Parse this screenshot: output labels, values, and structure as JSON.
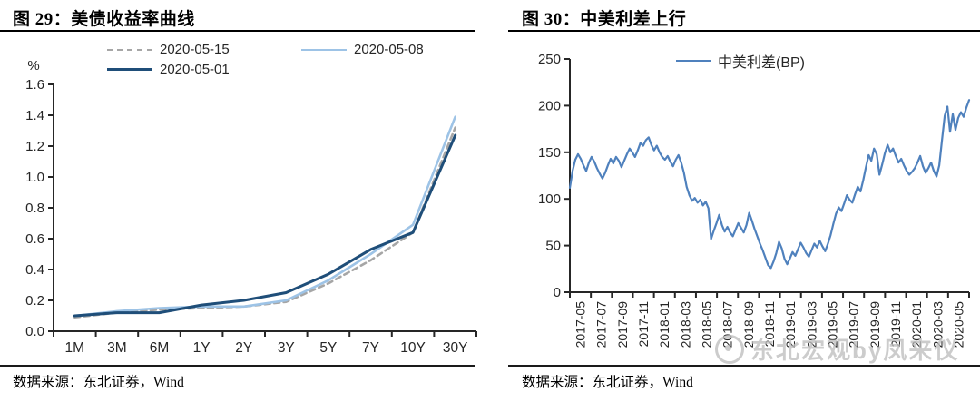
{
  "page": {
    "background": "#ffffff"
  },
  "panels": {
    "left": {
      "title": "图 29：美债收益率曲线",
      "source": "数据来源：东北证券，Wind"
    },
    "right": {
      "title": "图 30：中美利差上行",
      "source": "数据来源：东北证券，Wind",
      "watermark": "东北宏观by凤来仪"
    }
  },
  "chart_data": [
    {
      "type": "line",
      "title": "美债收益率曲线",
      "xlabel": "",
      "ylabel": "%",
      "ylim": [
        0,
        1.6
      ],
      "ytick_step": 0.2,
      "ytick_decimals": 1,
      "grid": false,
      "legend_position": "top",
      "categories": [
        "1M",
        "3M",
        "6M",
        "1Y",
        "2Y",
        "3Y",
        "5Y",
        "7Y",
        "10Y",
        "30Y"
      ],
      "series": [
        {
          "name": "2020-05-15",
          "color": "#a6a6a6",
          "style": "dashed",
          "width": 2.6,
          "values": [
            0.09,
            0.12,
            0.14,
            0.15,
            0.16,
            0.19,
            0.31,
            0.46,
            0.64,
            1.32
          ]
        },
        {
          "name": "2020-05-08",
          "color": "#9dc3e6",
          "style": "solid",
          "width": 2.6,
          "values": [
            0.1,
            0.13,
            0.15,
            0.16,
            0.16,
            0.2,
            0.33,
            0.5,
            0.69,
            1.39
          ]
        },
        {
          "name": "2020-05-01",
          "color": "#1f4e79",
          "style": "solid",
          "width": 3,
          "values": [
            0.1,
            0.12,
            0.12,
            0.17,
            0.2,
            0.25,
            0.37,
            0.53,
            0.64,
            1.27
          ]
        }
      ]
    },
    {
      "type": "line",
      "title": "中美利差上行",
      "xlabel": "",
      "ylabel": "",
      "ylim": [
        0,
        250
      ],
      "ytick_step": 50,
      "ytick_decimals": 0,
      "grid": false,
      "legend_position": "top",
      "x_labels": [
        "2017-05",
        "2017-07",
        "2017-09",
        "2017-11",
        "2018-01",
        "2018-03",
        "2018-05",
        "2018-07",
        "2018-09",
        "2018-11",
        "2019-01",
        "2019-03",
        "2019-05",
        "2019-07",
        "2019-09",
        "2019-11",
        "2020-01",
        "2020-03",
        "2020-05"
      ],
      "x_unit": "weekly points from 2017-05 to 2020-05",
      "series": [
        {
          "name": "中美利差(BP)",
          "color": "#4f81bd",
          "style": "solid",
          "width": 2.2,
          "values": [
            112,
            130,
            142,
            148,
            143,
            136,
            130,
            139,
            145,
            140,
            133,
            127,
            122,
            128,
            136,
            143,
            138,
            145,
            141,
            134,
            141,
            148,
            154,
            150,
            145,
            152,
            160,
            157,
            163,
            166,
            158,
            152,
            157,
            150,
            145,
            142,
            146,
            140,
            135,
            142,
            147,
            139,
            128,
            113,
            104,
            98,
            101,
            96,
            99,
            93,
            97,
            90,
            57,
            66,
            74,
            83,
            72,
            65,
            70,
            64,
            60,
            67,
            74,
            69,
            64,
            72,
            85,
            77,
            68,
            60,
            52,
            45,
            37,
            29,
            26,
            33,
            42,
            54,
            47,
            36,
            30,
            36,
            43,
            39,
            46,
            53,
            48,
            42,
            38,
            45,
            52,
            48,
            55,
            49,
            44,
            52,
            61,
            73,
            84,
            91,
            87,
            95,
            104,
            99,
            96,
            105,
            113,
            108,
            120,
            134,
            147,
            141,
            154,
            148,
            126,
            137,
            149,
            158,
            150,
            154,
            146,
            139,
            143,
            136,
            130,
            126,
            129,
            133,
            139,
            146,
            135,
            128,
            133,
            139,
            130,
            124,
            136,
            163,
            189,
            199,
            172,
            191,
            174,
            187,
            193,
            188,
            198,
            206
          ]
        }
      ]
    }
  ]
}
